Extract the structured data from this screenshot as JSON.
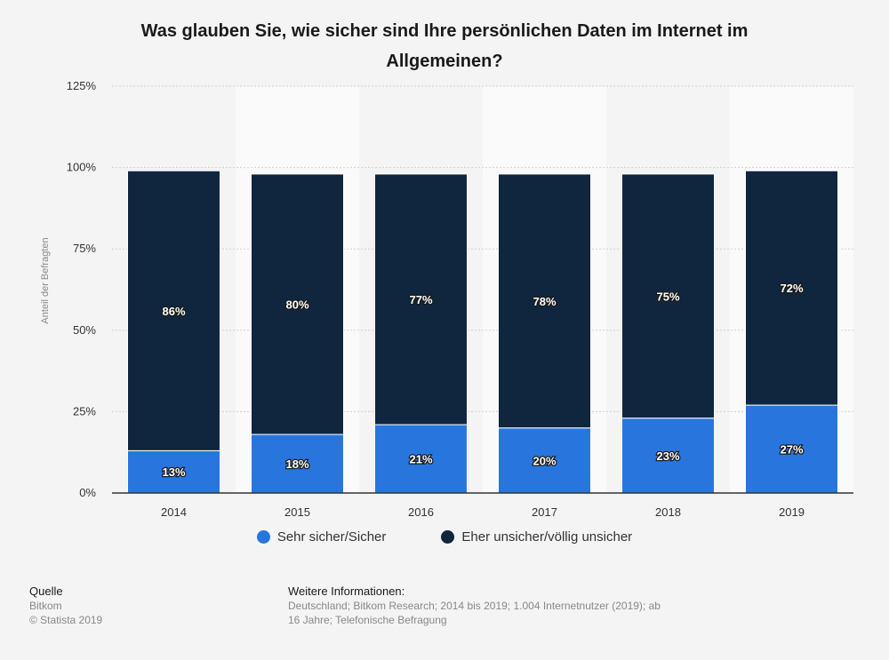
{
  "chart_data": {
    "type": "bar",
    "stacked": true,
    "title": "Was glauben Sie, wie sicher sind Ihre persönlichen Daten im Internet im Allgemeinen?",
    "ylabel": "Anteil der Befragten",
    "xlabel": "",
    "categories": [
      "2014",
      "2015",
      "2016",
      "2017",
      "2018",
      "2019"
    ],
    "ylim": [
      0,
      125
    ],
    "yticks": [
      "0%",
      "25%",
      "50%",
      "75%",
      "100%",
      "125%"
    ],
    "ytick_values": [
      0,
      25,
      50,
      75,
      100,
      125
    ],
    "grid": true,
    "legend_position": "bottom",
    "series": [
      {
        "name": "Sehr sicher/Sicher",
        "values": [
          13,
          18,
          21,
          20,
          23,
          27
        ],
        "labels": [
          "13%",
          "18%",
          "21%",
          "20%",
          "23%",
          "27%"
        ],
        "color": "#2876dd"
      },
      {
        "name": "Eher unsicher/völlig unsicher",
        "values": [
          86,
          80,
          77,
          78,
          75,
          72
        ],
        "labels": [
          "86%",
          "80%",
          "77%",
          "78%",
          "75%",
          "72%"
        ],
        "color": "#10263e"
      }
    ]
  },
  "footer": {
    "source_heading": "Quelle",
    "source_text": "Bitkom",
    "copyright": "© Statista 2019",
    "info_heading": "Weitere Informationen:",
    "info_text": "Deutschland; Bitkom Research; 2014 bis 2019; 1.004 Internetnutzer (2019); ab 16 Jahre; Telefonische Befragung"
  }
}
